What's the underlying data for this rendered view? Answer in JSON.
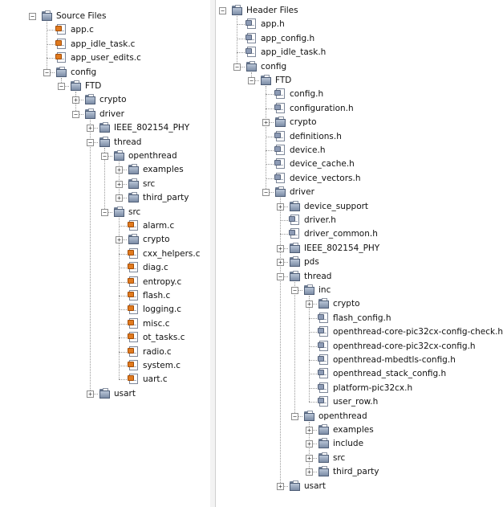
{
  "left_tree": [
    {
      "label": "Source Files",
      "kind": "folder",
      "depth": 0,
      "exp": "open"
    },
    {
      "label": "app.c",
      "kind": "c",
      "depth": 1
    },
    {
      "label": "app_idle_task.c",
      "kind": "c",
      "depth": 1
    },
    {
      "label": "app_user_edits.c",
      "kind": "c",
      "depth": 1
    },
    {
      "label": "config",
      "kind": "folder",
      "depth": 1,
      "exp": "open"
    },
    {
      "label": "FTD",
      "kind": "folder",
      "depth": 2,
      "exp": "open"
    },
    {
      "label": "crypto",
      "kind": "folder",
      "depth": 3,
      "exp": "closed"
    },
    {
      "label": "driver",
      "kind": "folder",
      "depth": 3,
      "exp": "open"
    },
    {
      "label": "IEEE_802154_PHY",
      "kind": "folder",
      "depth": 4,
      "exp": "closed"
    },
    {
      "label": "thread",
      "kind": "folder",
      "depth": 4,
      "exp": "open"
    },
    {
      "label": "openthread",
      "kind": "folder",
      "depth": 5,
      "exp": "open"
    },
    {
      "label": "examples",
      "kind": "folder",
      "depth": 6,
      "exp": "closed"
    },
    {
      "label": "src",
      "kind": "folder",
      "depth": 6,
      "exp": "closed"
    },
    {
      "label": "third_party",
      "kind": "folder",
      "depth": 6,
      "exp": "closed"
    },
    {
      "label": "src",
      "kind": "folder",
      "depth": 5,
      "exp": "open"
    },
    {
      "label": "alarm.c",
      "kind": "c",
      "depth": 6
    },
    {
      "label": "crypto",
      "kind": "folder",
      "depth": 6,
      "exp": "closed"
    },
    {
      "label": "cxx_helpers.c",
      "kind": "c",
      "depth": 6
    },
    {
      "label": "diag.c",
      "kind": "c",
      "depth": 6
    },
    {
      "label": "entropy.c",
      "kind": "c",
      "depth": 6
    },
    {
      "label": "flash.c",
      "kind": "c",
      "depth": 6
    },
    {
      "label": "logging.c",
      "kind": "c",
      "depth": 6
    },
    {
      "label": "misc.c",
      "kind": "c",
      "depth": 6
    },
    {
      "label": "ot_tasks.c",
      "kind": "c",
      "depth": 6
    },
    {
      "label": "radio.c",
      "kind": "c",
      "depth": 6
    },
    {
      "label": "system.c",
      "kind": "c",
      "depth": 6
    },
    {
      "label": "uart.c",
      "kind": "c",
      "depth": 6
    },
    {
      "label": "usart",
      "kind": "folder",
      "depth": 4,
      "exp": "closed"
    }
  ],
  "right_tree": [
    {
      "label": "Header Files",
      "kind": "folder",
      "depth": 0,
      "exp": "open"
    },
    {
      "label": "app.h",
      "kind": "h",
      "depth": 1
    },
    {
      "label": "app_config.h",
      "kind": "h",
      "depth": 1
    },
    {
      "label": "app_idle_task.h",
      "kind": "h",
      "depth": 1
    },
    {
      "label": "config",
      "kind": "folder",
      "depth": 1,
      "exp": "open"
    },
    {
      "label": "FTD",
      "kind": "folder",
      "depth": 2,
      "exp": "open"
    },
    {
      "label": "config.h",
      "kind": "h",
      "depth": 3
    },
    {
      "label": "configuration.h",
      "kind": "h",
      "depth": 3
    },
    {
      "label": "crypto",
      "kind": "folder",
      "depth": 3,
      "exp": "closed"
    },
    {
      "label": "definitions.h",
      "kind": "h",
      "depth": 3
    },
    {
      "label": "device.h",
      "kind": "h",
      "depth": 3
    },
    {
      "label": "device_cache.h",
      "kind": "h",
      "depth": 3
    },
    {
      "label": "device_vectors.h",
      "kind": "h",
      "depth": 3
    },
    {
      "label": "driver",
      "kind": "folder",
      "depth": 3,
      "exp": "open"
    },
    {
      "label": "device_support",
      "kind": "folder",
      "depth": 4,
      "exp": "closed"
    },
    {
      "label": "driver.h",
      "kind": "h",
      "depth": 4
    },
    {
      "label": "driver_common.h",
      "kind": "h",
      "depth": 4
    },
    {
      "label": "IEEE_802154_PHY",
      "kind": "folder",
      "depth": 4,
      "exp": "closed"
    },
    {
      "label": "pds",
      "kind": "folder",
      "depth": 4,
      "exp": "closed"
    },
    {
      "label": "thread",
      "kind": "folder",
      "depth": 4,
      "exp": "open"
    },
    {
      "label": "inc",
      "kind": "folder",
      "depth": 5,
      "exp": "open"
    },
    {
      "label": "crypto",
      "kind": "folder",
      "depth": 6,
      "exp": "closed"
    },
    {
      "label": "flash_config.h",
      "kind": "h",
      "depth": 6
    },
    {
      "label": "openthread-core-pic32cx-config-check.h",
      "kind": "h",
      "depth": 6
    },
    {
      "label": "openthread-core-pic32cx-config.h",
      "kind": "h",
      "depth": 6
    },
    {
      "label": "openthread-mbedtls-config.h",
      "kind": "h",
      "depth": 6
    },
    {
      "label": "openthread_stack_config.h",
      "kind": "h",
      "depth": 6
    },
    {
      "label": "platform-pic32cx.h",
      "kind": "h",
      "depth": 6
    },
    {
      "label": "user_row.h",
      "kind": "h",
      "depth": 6
    },
    {
      "label": "openthread",
      "kind": "folder",
      "depth": 5,
      "exp": "open"
    },
    {
      "label": "examples",
      "kind": "folder",
      "depth": 6,
      "exp": "closed"
    },
    {
      "label": "include",
      "kind": "folder",
      "depth": 6,
      "exp": "closed"
    },
    {
      "label": "src",
      "kind": "folder",
      "depth": 6,
      "exp": "closed"
    },
    {
      "label": "third_party",
      "kind": "folder",
      "depth": 6,
      "exp": "closed"
    },
    {
      "label": "usart",
      "kind": "folder",
      "depth": 4,
      "exp": "closed"
    }
  ]
}
